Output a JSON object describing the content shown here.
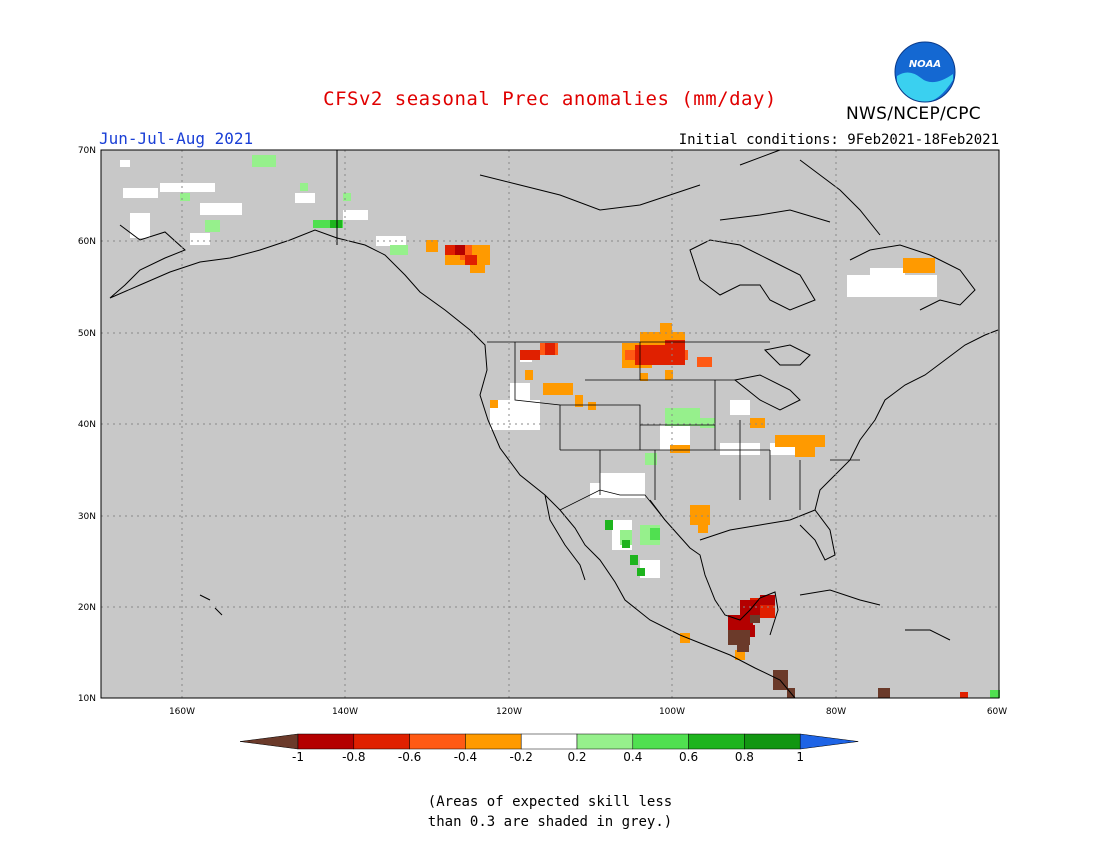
{
  "title": "CFSv2 seasonal Prec anomalies (mm/day)",
  "agency": "NWS/NCEP/CPC",
  "logo_text": "NOAA",
  "season": "Jun-Jul-Aug 2021",
  "initial_conditions": "Initial conditions: 9Feb2021-18Feb2021",
  "map": {
    "lon_range": [
      -170,
      -60
    ],
    "lat_range": [
      10,
      70
    ],
    "lat_labels": [
      "70N",
      "60N",
      "50N",
      "40N",
      "30N",
      "20N",
      "10N"
    ],
    "lon_labels": [
      "160W",
      "140W",
      "120W",
      "100W",
      "80W",
      "60W"
    ],
    "background_color": "#c8c8c8"
  },
  "colorbar": {
    "labels": [
      "-1",
      "-0.8",
      "-0.6",
      "-0.4",
      "-0.2",
      "0.2",
      "0.4",
      "0.6",
      "0.8",
      "1"
    ],
    "colors": [
      "#6b3a2a",
      "#b40000",
      "#e02000",
      "#ff5a14",
      "#ff9a00",
      "#ffffff",
      "#96f08c",
      "#50e050",
      "#1eb41e",
      "#129612",
      "#1e64e6"
    ]
  },
  "footnote": [
    "(Areas of expected skill less",
    "than 0.3 are shaded in grey.)"
  ]
}
